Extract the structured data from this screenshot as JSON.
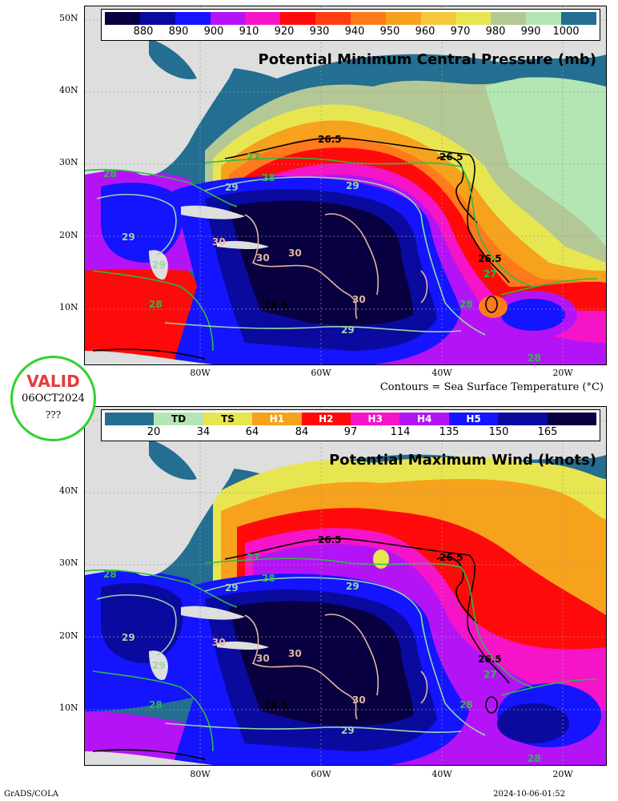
{
  "panel1": {
    "title": "Potential Minimum Central Pressure (mb)",
    "colorbar": {
      "colors": [
        "#080040",
        "#0a0a9e",
        "#1414ff",
        "#b414f5",
        "#f514c8",
        "#ff0a0a",
        "#ff3c14",
        "#ff7a1a",
        "#f7a21c",
        "#f5c83c",
        "#e8e650",
        "#b4c896",
        "#b4e6b4",
        "#236e91"
      ],
      "ticks": [
        "880",
        "890",
        "900",
        "910",
        "920",
        "930",
        "940",
        "950",
        "960",
        "970",
        "980",
        "990",
        "1000"
      ]
    }
  },
  "panel2": {
    "title": "Potential Maximum Wind (knots)",
    "colorbar": {
      "colors": [
        "#236e91",
        "#b4e6b4",
        "#e8e650",
        "#f7a21c",
        "#ff0a0a",
        "#f514c8",
        "#b414f5",
        "#1414ff",
        "#0a0a9e",
        "#080040"
      ],
      "segment_labels": [
        "",
        "TD",
        "TS",
        "H1",
        "H2",
        "H3",
        "H4",
        "H5",
        "",
        ""
      ],
      "segment_label_colors": [
        "#000",
        "#000",
        "#000",
        "#fff",
        "#fff",
        "#fff",
        "#fff",
        "#fff",
        "#000",
        "#000"
      ],
      "ticks": [
        "20",
        "34",
        "64",
        "84",
        "97",
        "114",
        "135",
        "150",
        "165"
      ]
    }
  },
  "axes": {
    "lat_labels": [
      "50N",
      "40N",
      "30N",
      "20N",
      "10N"
    ],
    "lon_labels": [
      "80W",
      "60W",
      "40W",
      "20W"
    ]
  },
  "contour_labels": [
    "26.5",
    "26.5",
    "26.5",
    "26.5",
    "27",
    "27",
    "28",
    "28",
    "28",
    "28",
    "28",
    "29",
    "29",
    "29",
    "29",
    "29",
    "30",
    "30",
    "30",
    "30"
  ],
  "caption": "Contours = Sea Surface Temperature (°C)",
  "valid_badge": {
    "title": "VALID",
    "date": "06OCT2024",
    "extra": "???"
  },
  "footer": {
    "left": "GrADS/COLA",
    "right": "2024-10-06-01:52"
  }
}
